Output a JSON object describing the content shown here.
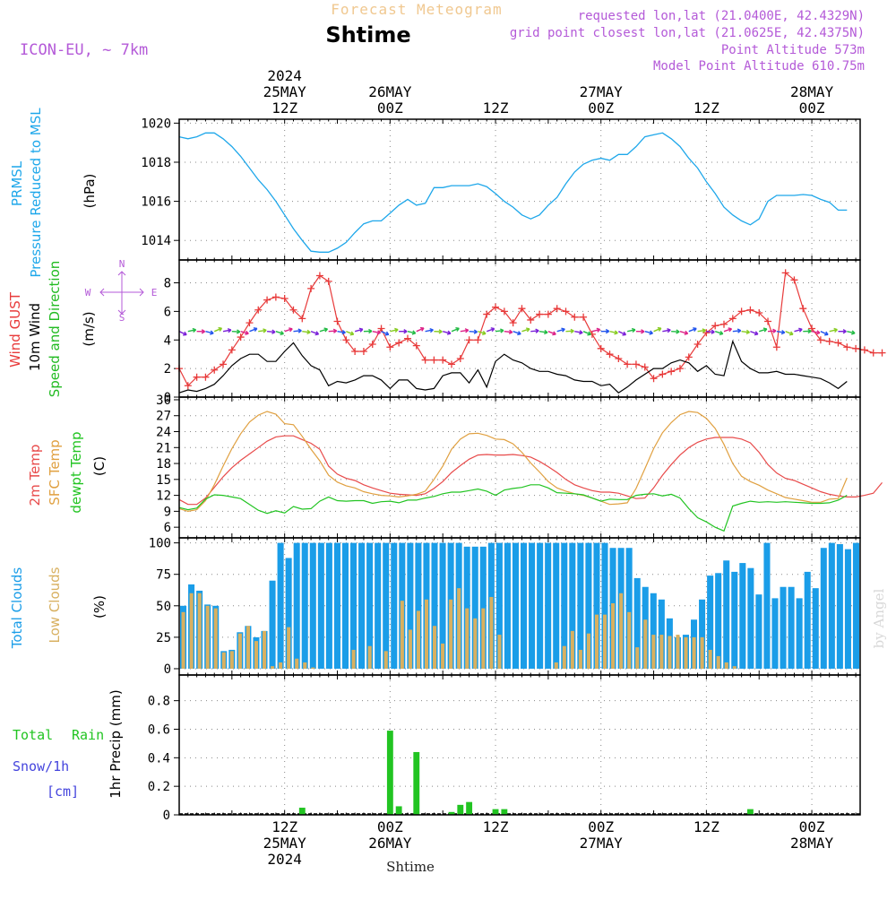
{
  "header": {
    "subtitle": "Forecast Meteogram",
    "title": "Shtime",
    "model": "ICON-EU, ~ 7km",
    "info": [
      "requested lon,lat (21.0400E, 42.4329N)",
      "grid point closest lon,lat (21.0625E, 42.4375N)",
      "Point Altitude 573m",
      "Model Point Altitude 610.75m"
    ],
    "footer_name": "Shtime",
    "watermark": "by Angel"
  },
  "colors": {
    "pressure": "#1ea7ea",
    "gust": "#e83a3a",
    "wind": "#000000",
    "dir": "#22bb22",
    "temp2m": "#e84a4a",
    "sfc": "#e0a040",
    "dewpt": "#22c422",
    "total_clouds": "#1a9de8",
    "low_clouds": "#d8b060",
    "rain": "#22c422",
    "snow": "#4444dd",
    "compass": "#b45ad8",
    "header_info": "#b45ad8",
    "subtitle": "#f0c890"
  },
  "time_axis": {
    "top_labels": [
      {
        "t": 12,
        "lines": [
          "2024",
          "25MAY",
          "12Z"
        ]
      },
      {
        "t": 24,
        "lines": [
          "26MAY",
          "00Z"
        ]
      },
      {
        "t": 36,
        "lines": [
          "12Z"
        ]
      },
      {
        "t": 48,
        "lines": [
          "27MAY",
          "00Z"
        ]
      },
      {
        "t": 60,
        "lines": [
          "12Z"
        ]
      },
      {
        "t": 72,
        "lines": [
          "28MAY",
          "00Z"
        ]
      }
    ],
    "bottom_labels": [
      {
        "t": 12,
        "lines": [
          "12Z",
          "25MAY",
          "2024"
        ]
      },
      {
        "t": 24,
        "lines": [
          "00Z",
          "26MAY"
        ]
      },
      {
        "t": 36,
        "lines": [
          "12Z"
        ]
      },
      {
        "t": 48,
        "lines": [
          "00Z",
          "27MAY"
        ]
      },
      {
        "t": 60,
        "lines": [
          "12Z"
        ]
      },
      {
        "t": 72,
        "lines": [
          "00Z",
          "28MAY"
        ]
      }
    ]
  },
  "chart_data": [
    {
      "type": "line",
      "panel": "pressure",
      "ylabels": [
        "PRMSL",
        "Pressure Reduced to MSL",
        "(hPa)"
      ],
      "ylim": [
        1013,
        1020.2
      ],
      "yticks": [
        1014,
        1016,
        1018,
        1020
      ],
      "series": [
        {
          "name": "PRMSL",
          "x": [
            0,
            1,
            2,
            3,
            4,
            5,
            6,
            7,
            8,
            9,
            10,
            11,
            12,
            13,
            14,
            15,
            16,
            17,
            18,
            19,
            20,
            21,
            22,
            23,
            24,
            25,
            26,
            27,
            28,
            29,
            30,
            31,
            32,
            33,
            34,
            35,
            36,
            37,
            38,
            39,
            40,
            41,
            42,
            43,
            44,
            45,
            46,
            47,
            48,
            49,
            50,
            51,
            52,
            53,
            54,
            55,
            56,
            57,
            58,
            59,
            60,
            61,
            62,
            63,
            64,
            65,
            66,
            67,
            68,
            69,
            70,
            71,
            72,
            73,
            74,
            75,
            76
          ],
          "values": [
            1019.3,
            1019.2,
            1019.3,
            1019.5,
            1019.5,
            1019.2,
            1018.8,
            1018.3,
            1017.7,
            1017.1,
            1016.6,
            1016.0,
            1015.3,
            1014.6,
            1014.0,
            1013.45,
            1013.4,
            1013.4,
            1013.6,
            1013.9,
            1014.4,
            1014.85,
            1015.0,
            1015.0,
            1015.4,
            1015.8,
            1016.1,
            1015.8,
            1015.9,
            1016.7,
            1016.7,
            1016.8,
            1016.8,
            1016.8,
            1016.9,
            1016.75,
            1016.4,
            1016.0,
            1015.7,
            1015.3,
            1015.1,
            1015.3,
            1015.8,
            1016.2,
            1016.9,
            1017.5,
            1017.9,
            1018.1,
            1018.2,
            1018.1,
            1018.4,
            1018.4,
            1018.8,
            1019.3,
            1019.4,
            1019.5,
            1019.2,
            1018.8,
            1018.2,
            1017.7,
            1017.0,
            1016.4,
            1015.7,
            1015.3,
            1015.0,
            1014.8,
            1015.1,
            1016.0,
            1016.3,
            1016.3,
            1016.3,
            1016.35,
            1016.3,
            1016.1,
            1015.95,
            1015.55,
            1015.55
          ]
        }
      ]
    },
    {
      "type": "line",
      "panel": "wind",
      "ylabels": [
        "Wind GUST",
        "10m Wind",
        "Speed and Direction",
        "(m/s)"
      ],
      "compass": {
        "n": "N",
        "s": "S",
        "w": "W",
        "e": "E"
      },
      "ylim": [
        0,
        9.6
      ],
      "yticks": [
        0,
        2,
        4,
        6,
        8
      ],
      "series": [
        {
          "name": "Wind GUST",
          "values": [
            2.0,
            0.8,
            1.4,
            1.4,
            1.9,
            2.3,
            3.3,
            4.2,
            5.2,
            6.1,
            6.8,
            7.0,
            6.9,
            6.1,
            5.5,
            7.6,
            8.5,
            8.1,
            5.3,
            4.0,
            3.2,
            3.2,
            3.7,
            4.8,
            3.5,
            3.8,
            4.1,
            3.6,
            2.6,
            2.6,
            2.6,
            2.3,
            2.7,
            4.0,
            4.0,
            5.8,
            6.3,
            6.0,
            5.2,
            6.2,
            5.4,
            5.8,
            5.8,
            6.2,
            6.0,
            5.6,
            5.6,
            4.4,
            3.4,
            3.0,
            2.7,
            2.3,
            2.3,
            2.1,
            1.3,
            1.6,
            1.8,
            2.0,
            2.8,
            3.7,
            4.5,
            5.0,
            5.1,
            5.5,
            6.0,
            6.1,
            5.9,
            5.3,
            3.5,
            8.7,
            8.2,
            6.2,
            4.8,
            4.0,
            3.9,
            3.8,
            3.5,
            3.4,
            3.3,
            3.1,
            3.1
          ]
        },
        {
          "name": "10m Wind",
          "values": [
            0.3,
            0.5,
            0.4,
            0.6,
            0.9,
            1.5,
            2.2,
            2.7,
            3.0,
            3.0,
            2.5,
            2.5,
            3.2,
            3.8,
            2.9,
            2.2,
            1.9,
            0.8,
            1.1,
            1.0,
            1.2,
            1.5,
            1.5,
            1.2,
            0.6,
            1.2,
            1.2,
            0.6,
            0.5,
            0.6,
            1.5,
            1.7,
            1.7,
            1.0,
            1.9,
            0.7,
            2.5,
            3.0,
            2.6,
            2.4,
            2.0,
            1.8,
            1.8,
            1.6,
            1.5,
            1.2,
            1.1,
            1.1,
            0.8,
            0.9,
            0.3,
            0.7,
            1.2,
            1.6,
            2.0,
            2.0,
            2.4,
            2.6,
            2.4,
            1.8,
            2.2,
            1.6,
            1.5,
            3.9,
            2.5,
            2.0,
            1.7,
            1.7,
            1.8,
            1.6,
            1.6,
            1.5,
            1.4,
            1.3,
            1.0,
            0.6,
            1.1
          ]
        },
        {
          "name": "Speed and Direction",
          "y": 4.6,
          "count": 77
        }
      ]
    },
    {
      "type": "line",
      "panel": "temperature",
      "ylabels": [
        "2m Temp",
        "SFC Temp",
        "dewpt Temp",
        "(C)"
      ],
      "ylim": [
        4,
        30.5
      ],
      "yticks": [
        6,
        9,
        12,
        15,
        18,
        21,
        24,
        27,
        30
      ],
      "series": [
        {
          "name": "2m Temp",
          "values": [
            11.2,
            10.3,
            10.3,
            11.5,
            13.5,
            15.5,
            17.2,
            18.6,
            19.8,
            21.0,
            22.2,
            23.0,
            23.2,
            23.2,
            22.5,
            21.8,
            20.7,
            17.5,
            16.0,
            15.2,
            14.8,
            14.0,
            13.4,
            12.9,
            12.4,
            12.2,
            12.1,
            12.0,
            12.3,
            13.3,
            14.6,
            16.3,
            17.6,
            18.8,
            19.6,
            19.7,
            19.6,
            19.6,
            19.7,
            19.5,
            19.2,
            18.4,
            17.4,
            16.3,
            15.0,
            14.0,
            13.4,
            12.9,
            12.6,
            12.6,
            12.4,
            11.9,
            11.4,
            11.5,
            13.4,
            15.8,
            17.8,
            19.6,
            21.0,
            22.0,
            22.6,
            22.9,
            22.9,
            22.9,
            22.6,
            21.9,
            20.1,
            17.8,
            16.2,
            15.2,
            14.8,
            14.1,
            13.4,
            12.7,
            12.2,
            11.9,
            11.7,
            11.7,
            12.0,
            12.4,
            14.4
          ]
        },
        {
          "name": "SFC Temp",
          "values": [
            9.5,
            9.0,
            9.3,
            11.0,
            14.0,
            17.5,
            20.8,
            23.6,
            25.8,
            27.1,
            27.8,
            27.3,
            25.5,
            25.3,
            23.1,
            20.7,
            18.5,
            15.8,
            14.5,
            13.8,
            13.4,
            12.7,
            12.3,
            12.0,
            11.9,
            11.7,
            11.9,
            12.2,
            12.8,
            15.0,
            17.5,
            20.7,
            22.6,
            23.6,
            23.7,
            23.3,
            22.6,
            22.5,
            21.7,
            20.1,
            18.1,
            16.4,
            14.6,
            13.4,
            12.8,
            12.3,
            12.0,
            11.5,
            10.9,
            10.3,
            10.4,
            10.6,
            13.3,
            17.0,
            20.8,
            23.8,
            25.7,
            27.2,
            27.8,
            27.6,
            26.5,
            24.6,
            21.6,
            18.0,
            15.6,
            14.6,
            13.9,
            13.0,
            12.3,
            11.6,
            11.3,
            11.0,
            10.7,
            10.7,
            11.3,
            11.4,
            15.3
          ]
        },
        {
          "name": "dewpt Temp",
          "values": [
            9.7,
            9.3,
            9.6,
            11.3,
            12.1,
            12.0,
            11.7,
            11.4,
            10.3,
            9.2,
            8.6,
            9.1,
            8.7,
            9.9,
            9.4,
            9.5,
            10.9,
            11.7,
            11.0,
            10.9,
            11.0,
            11.0,
            10.5,
            10.8,
            10.9,
            10.6,
            11.1,
            11.1,
            11.5,
            11.8,
            12.3,
            12.6,
            12.6,
            12.9,
            13.2,
            12.8,
            12.0,
            13.0,
            13.3,
            13.5,
            14.0,
            14.0,
            13.4,
            12.5,
            12.4,
            12.3,
            12.1,
            11.5,
            10.9,
            11.3,
            11.2,
            11.2,
            12.0,
            12.2,
            12.3,
            11.9,
            12.2,
            11.5,
            9.5,
            7.8,
            7.0,
            6.0,
            5.3,
            10.0,
            10.5,
            10.9,
            10.7,
            10.8,
            10.7,
            10.8,
            10.7,
            10.6,
            10.5,
            10.5,
            10.6,
            11.1,
            12.0
          ]
        }
      ]
    },
    {
      "type": "bar",
      "panel": "clouds",
      "ylabels": [
        "Total Clouds",
        "Low Clouds",
        "(%)"
      ],
      "ylim": [
        -5,
        104
      ],
      "yticks": [
        0,
        25,
        50,
        75,
        100
      ],
      "series": [
        {
          "name": "Total Clouds",
          "values": [
            50,
            67,
            62,
            51,
            50,
            14,
            15,
            29,
            34,
            25,
            30,
            70,
            100,
            88,
            100,
            100,
            100,
            100,
            100,
            100,
            100,
            100,
            100,
            100,
            100,
            100,
            100,
            100,
            100,
            100,
            100,
            100,
            100,
            100,
            100,
            97,
            97,
            97,
            100,
            100,
            100,
            100,
            100,
            100,
            100,
            100,
            100,
            100,
            100,
            100,
            100,
            100,
            100,
            96,
            96,
            96,
            72,
            65,
            60,
            55,
            40,
            25,
            27,
            39,
            55,
            74,
            76,
            86,
            77,
            84,
            80,
            59,
            100,
            56,
            65,
            65,
            56,
            77,
            64,
            96,
            100,
            99,
            95,
            100
          ]
        },
        {
          "name": "Low Clouds",
          "values": [
            45,
            60,
            60,
            50,
            48,
            13,
            14,
            28,
            34,
            22,
            30,
            2,
            5,
            33,
            8,
            5,
            1,
            0,
            0,
            0,
            0,
            15,
            0,
            18,
            0,
            14,
            0,
            54,
            31,
            46,
            55,
            34,
            20,
            55,
            64,
            48,
            40,
            48,
            57,
            27,
            0,
            0,
            0,
            0,
            0,
            0,
            5,
            18,
            30,
            15,
            28,
            43,
            43,
            52,
            60,
            45,
            17,
            39,
            27,
            27,
            26,
            27,
            25,
            25,
            25,
            15,
            10,
            5,
            2,
            0,
            0,
            0,
            0,
            0,
            0,
            0,
            0,
            0,
            0,
            0,
            0,
            0,
            0,
            0
          ]
        }
      ]
    },
    {
      "type": "bar",
      "panel": "precip",
      "ylabels_left": [
        "Total",
        "Rain",
        "Snow/1h",
        "[cm]"
      ],
      "ylabel_right": "1hr Precip (mm)",
      "ylim": [
        0,
        0.98
      ],
      "yticks": [
        "0",
        "0.2",
        "0.4",
        "0.6",
        "0.8"
      ],
      "ytick_values": [
        0,
        0.2,
        0.4,
        0.6,
        0.8
      ],
      "series": [
        {
          "name": "Rain",
          "x": [
            14,
            24,
            25,
            27,
            31,
            32,
            33,
            36,
            37,
            65
          ],
          "values": [
            0.05,
            0.59,
            0.06,
            0.44,
            0.02,
            0.07,
            0.09,
            0.04,
            0.04,
            0.04
          ]
        }
      ]
    }
  ]
}
